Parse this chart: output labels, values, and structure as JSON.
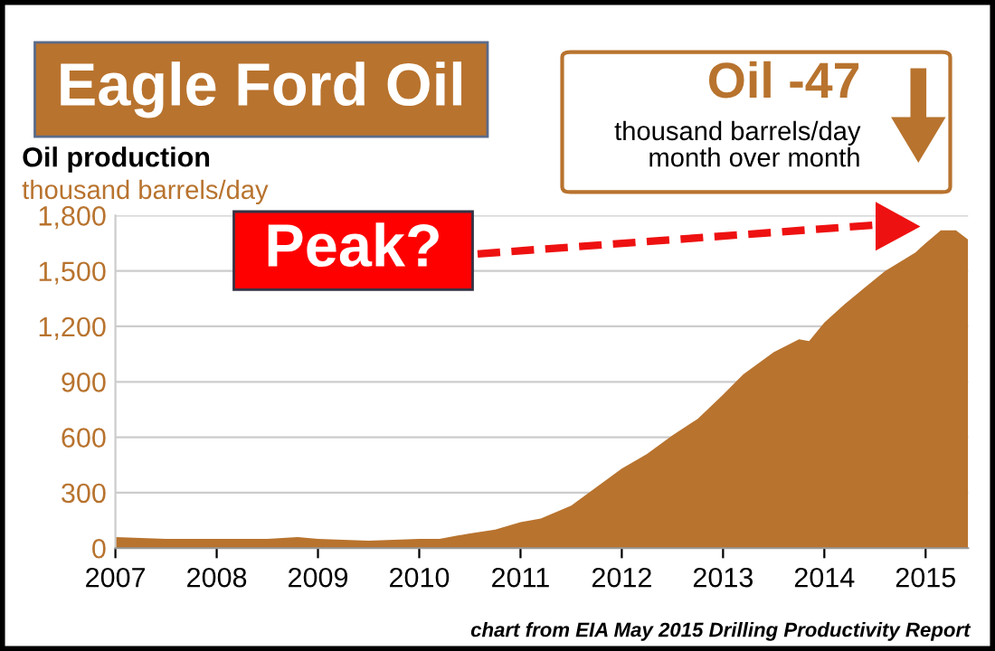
{
  "chart_data": {
    "type": "area",
    "title": "Eagle Ford Oil",
    "subtitle": "Oil production",
    "ylabel": "thousand barrels/day",
    "x": [
      2007,
      2007.5,
      2008,
      2008.5,
      2008.8,
      2009,
      2009.5,
      2010,
      2010.2,
      2010.5,
      2010.75,
      2011,
      2011.2,
      2011.5,
      2011.75,
      2012,
      2012.25,
      2012.5,
      2012.75,
      2013,
      2013.2,
      2013.5,
      2013.75,
      2013.85,
      2014,
      2014.2,
      2014.4,
      2014.6,
      2014.9,
      2015,
      2015.15,
      2015.3,
      2015.42
    ],
    "series": [
      {
        "color": "#b8732e",
        "values": [
          60,
          50,
          50,
          50,
          60,
          50,
          40,
          50,
          50,
          80,
          100,
          140,
          160,
          230,
          330,
          430,
          510,
          610,
          700,
          830,
          940,
          1060,
          1130,
          1120,
          1220,
          1320,
          1410,
          1500,
          1600,
          1650,
          1720,
          1720,
          1670
        ]
      }
    ],
    "xlim": [
      2007,
      2015.42
    ],
    "xticks": [
      2007,
      2008,
      2009,
      2010,
      2011,
      2012,
      2013,
      2014,
      2015
    ],
    "ylim": [
      0,
      1800
    ],
    "yticks": [
      0,
      300,
      600,
      900,
      {
        "value": 1200,
        "label": "1,200"
      },
      {
        "value": 1500,
        "label": "1,500"
      },
      {
        "value": 1800,
        "label": "1,800"
      }
    ],
    "grid": "y",
    "annotations": [
      "Peak?",
      "Oil -47",
      "thousand barrels/day\nmonth over month",
      "chart from EIA May 2015 Drilling Productivity Report"
    ]
  }
}
